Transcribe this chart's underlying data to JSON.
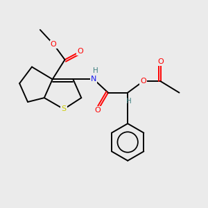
{
  "bg_color": "#ebebeb",
  "atom_colors": {
    "C": "#000000",
    "O": "#ff0000",
    "N": "#1a1aee",
    "S": "#cccc00",
    "H": "#3d8080"
  },
  "line_color": "#000000",
  "line_width": 1.4,
  "figsize": [
    3.0,
    3.0
  ],
  "dpi": 100,
  "xlim": [
    0,
    10
  ],
  "ylim": [
    0,
    10
  ]
}
